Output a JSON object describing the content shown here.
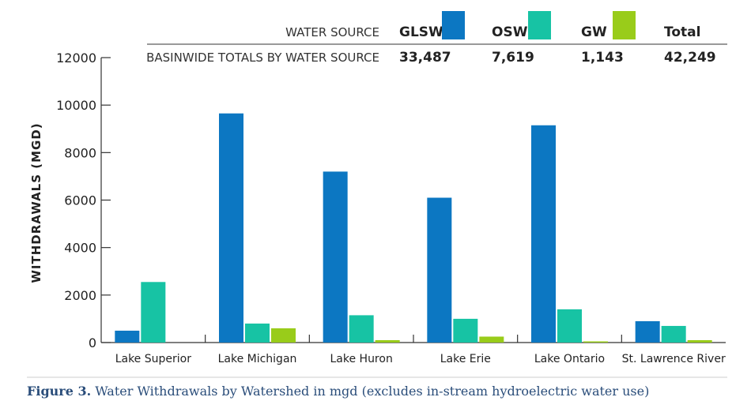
{
  "caption": {
    "label": "Figure 3.",
    "text": "Water Withdrawals by Watershed in mgd (excludes in-stream hydroelectric water use)"
  },
  "legend": {
    "row1_label": "WATER SOURCE",
    "row2_label": "BASINWIDE TOTALS BY WATER SOURCE",
    "entries": [
      {
        "name": "GLSW",
        "total": "33,487",
        "color": "#0c77c2"
      },
      {
        "name": "OSW",
        "total": "7,619",
        "color": "#17c3a4"
      },
      {
        "name": "GW",
        "total": "1,143",
        "color": "#99cc1a"
      }
    ],
    "total_header": "Total",
    "total_value": "42,249"
  },
  "chart_data": {
    "type": "bar",
    "ylabel": "WITHDRAWALS (MGD)",
    "ylim": [
      0,
      12000
    ],
    "yticks": [
      0,
      2000,
      4000,
      6000,
      8000,
      10000,
      12000
    ],
    "categories": [
      "Lake Superior",
      "Lake Michigan",
      "Lake Huron",
      "Lake Erie",
      "Lake Ontario",
      "St. Lawrence River"
    ],
    "series": [
      {
        "name": "GLSW",
        "color": "#0c77c2",
        "values": [
          500,
          9650,
          7200,
          6100,
          9150,
          900
        ]
      },
      {
        "name": "OSW",
        "color": "#17c3a4",
        "values": [
          2550,
          800,
          1150,
          1000,
          1400,
          700
        ]
      },
      {
        "name": "GW",
        "color": "#99cc1a",
        "values": [
          0,
          600,
          100,
          250,
          50,
          100
        ]
      }
    ],
    "grid": false
  }
}
